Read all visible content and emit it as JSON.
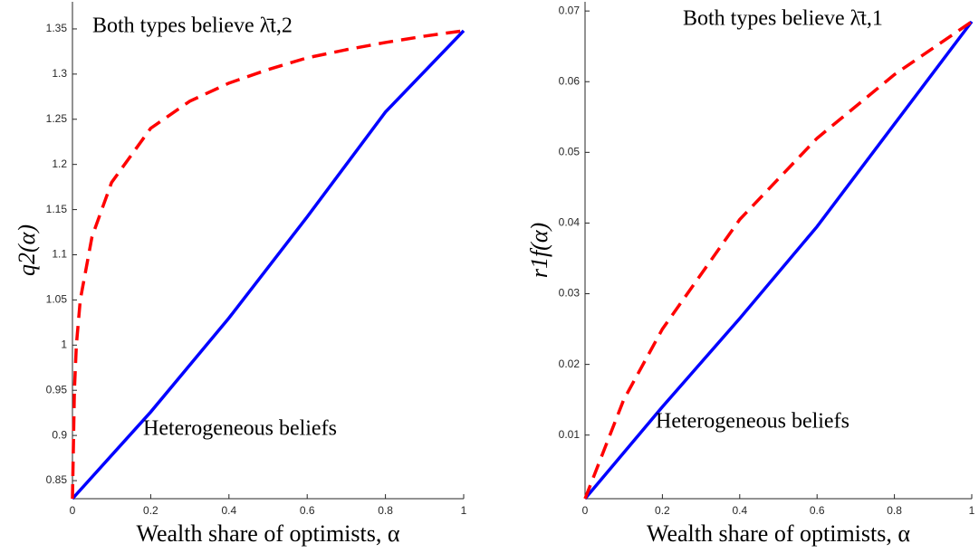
{
  "chart_data": [
    {
      "type": "line",
      "xlabel": "Wealth share of optimists, α",
      "ylabel": "q2(α)",
      "annotations": [
        "Both types believe λ̄t,2",
        "Heterogeneous beliefs"
      ],
      "xlim": [
        0,
        1
      ],
      "xticks": [
        0,
        0.2,
        0.4,
        0.6,
        0.8,
        1
      ],
      "ylim": [
        0.83,
        1.38
      ],
      "yticks": [
        0.85,
        0.9,
        0.95,
        1,
        1.05,
        1.1,
        1.15,
        1.2,
        1.25,
        1.3,
        1.35
      ],
      "series": [
        {
          "color": "#0000ff",
          "dashed": false,
          "x": [
            0,
            0.2,
            0.4,
            0.6,
            0.8,
            1
          ],
          "values": [
            0.83,
            0.926,
            1.03,
            1.142,
            1.258,
            1.348
          ]
        },
        {
          "color": "#ff0000",
          "dashed": true,
          "x": [
            0,
            0.005,
            0.01,
            0.02,
            0.05,
            0.1,
            0.2,
            0.3,
            0.4,
            0.5,
            0.6,
            0.7,
            0.8,
            0.9,
            1
          ],
          "values": [
            0.83,
            0.95,
            1.0,
            1.05,
            1.12,
            1.18,
            1.24,
            1.27,
            1.29,
            1.305,
            1.318,
            1.327,
            1.335,
            1.342,
            1.348
          ]
        }
      ]
    },
    {
      "type": "line",
      "xlabel": "Wealth share of optimists, α",
      "ylabel": "r1f(α)",
      "annotations": [
        "Both types believe λ̄t,1",
        "Heterogeneous beliefs"
      ],
      "xlim": [
        0,
        1
      ],
      "xticks": [
        0,
        0.2,
        0.4,
        0.6,
        0.8,
        1
      ],
      "ylim": [
        0.001,
        0.0713
      ],
      "yticks": [
        0.01,
        0.02,
        0.03,
        0.04,
        0.05,
        0.06,
        0.07
      ],
      "series": [
        {
          "color": "#0000ff",
          "dashed": false,
          "x": [
            0,
            0.2,
            0.4,
            0.6,
            0.8,
            1
          ],
          "values": [
            0.001,
            0.014,
            0.0265,
            0.0395,
            0.054,
            0.0685
          ]
        },
        {
          "color": "#ff0000",
          "dashed": true,
          "x": [
            0,
            0.1,
            0.2,
            0.4,
            0.6,
            0.8,
            1
          ],
          "values": [
            0.001,
            0.015,
            0.025,
            0.0405,
            0.052,
            0.061,
            0.0685
          ]
        }
      ]
    }
  ]
}
